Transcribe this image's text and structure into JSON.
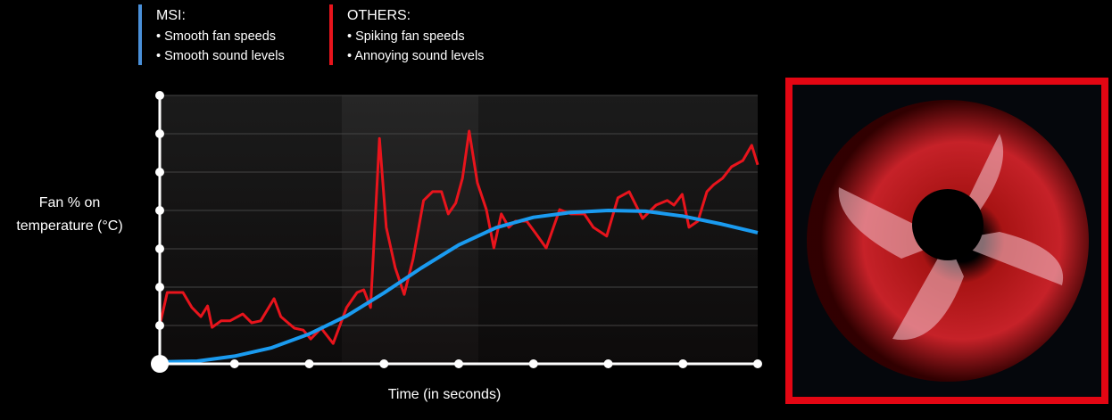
{
  "chart_data": {
    "type": "line",
    "xlabel": "Time (in seconds)",
    "ylabel": [
      "Fan % on",
      "temperature (°C)"
    ],
    "xlim": [
      0,
      8
    ],
    "xticks": [
      0,
      1,
      2,
      3,
      4,
      5,
      6,
      7,
      8
    ],
    "ylim": [
      0,
      7
    ],
    "yticks": [
      0,
      1,
      2,
      3,
      4,
      5,
      6,
      7
    ],
    "grid": true,
    "series": [
      {
        "name": "MSI:",
        "color": "#1a9bf0",
        "notes": [
          "Smooth fan speeds",
          "Smooth sound levels"
        ],
        "x": [
          0,
          0.5,
          1,
          1.5,
          2,
          2.5,
          3,
          3.5,
          4,
          4.5,
          5,
          5.5,
          6,
          6.5,
          7,
          7.5,
          8
        ],
        "values": [
          0.05,
          0.07,
          0.2,
          0.42,
          0.78,
          1.25,
          1.85,
          2.5,
          3.1,
          3.55,
          3.82,
          3.95,
          4.0,
          3.98,
          3.85,
          3.65,
          3.42
        ]
      },
      {
        "name": "OTHERS:",
        "color": "#e8141c",
        "notes": [
          "Spiking fan speeds",
          "Annoying sound levels"
        ],
        "x": [
          0,
          0.1,
          0.31,
          0.43,
          0.55,
          0.64,
          0.7,
          0.82,
          0.94,
          1.11,
          1.23,
          1.35,
          1.53,
          1.62,
          1.8,
          1.92,
          2.02,
          2.16,
          2.32,
          2.5,
          2.64,
          2.73,
          2.82,
          2.94,
          3.03,
          3.15,
          3.27,
          3.39,
          3.53,
          3.65,
          3.77,
          3.86,
          3.96,
          4.05,
          4.14,
          4.25,
          4.37,
          4.47,
          4.57,
          4.67,
          4.76,
          4.91,
          5.03,
          5.17,
          5.35,
          5.5,
          5.68,
          5.8,
          5.98,
          6.13,
          6.28,
          6.46,
          6.64,
          6.79,
          6.88,
          6.99,
          7.08,
          7.2,
          7.32,
          7.41,
          7.53,
          7.65,
          7.8,
          7.92,
          8
        ],
        "values": [
          1.0,
          1.86,
          1.86,
          1.47,
          1.23,
          1.51,
          0.95,
          1.12,
          1.12,
          1.3,
          1.07,
          1.12,
          1.7,
          1.23,
          0.93,
          0.88,
          0.65,
          0.93,
          0.53,
          1.47,
          1.86,
          1.93,
          1.47,
          5.88,
          3.56,
          2.51,
          1.81,
          2.74,
          4.26,
          4.49,
          4.49,
          3.91,
          4.19,
          4.84,
          6.07,
          4.72,
          4.02,
          3.02,
          3.91,
          3.56,
          3.72,
          3.72,
          3.4,
          3.02,
          4.02,
          3.91,
          3.91,
          3.56,
          3.33,
          4.33,
          4.49,
          3.79,
          4.14,
          4.26,
          4.14,
          4.42,
          3.56,
          3.72,
          4.49,
          4.67,
          4.84,
          5.14,
          5.3,
          5.7,
          5.19
        ]
      }
    ]
  }
}
